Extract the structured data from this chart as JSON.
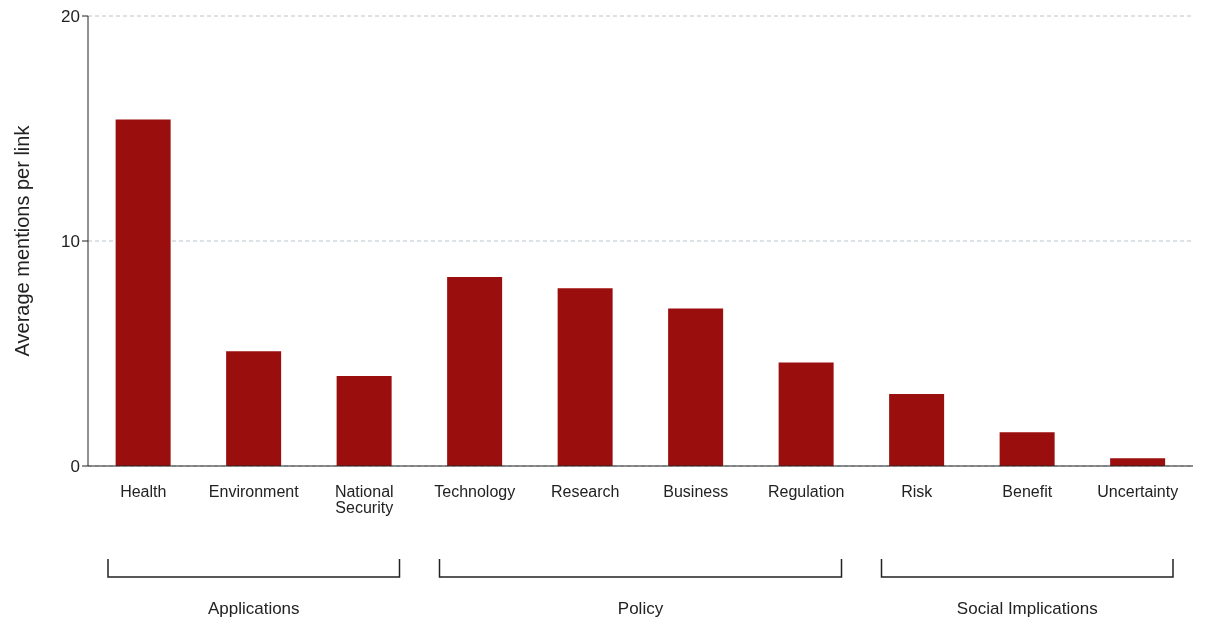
{
  "chart_data": {
    "type": "bar",
    "ylabel": "Average mentions per link",
    "categories": [
      "Health",
      "Environment",
      "National Security",
      "Technology",
      "Research",
      "Business",
      "Regulation",
      "Risk",
      "Benefit",
      "Uncertainty"
    ],
    "values": [
      15.4,
      5.1,
      4.0,
      8.4,
      7.9,
      7.0,
      4.6,
      3.2,
      1.5,
      0.35
    ],
    "color": "#9b0e0e",
    "ylim": [
      0,
      20
    ],
    "yticks": [
      0,
      10,
      20
    ],
    "grid": "y",
    "annotations": [
      "Applications",
      "Policy",
      "Social Implications"
    ]
  }
}
